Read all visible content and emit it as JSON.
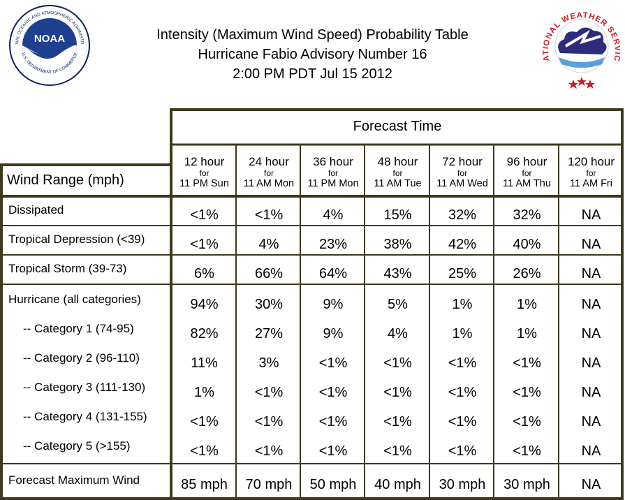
{
  "header": {
    "title_line1": "Intensity (Maximum Wind Speed) Probability Table",
    "title_line2": "Hurricane Fabio Advisory Number 16",
    "title_line3": "2:00 PM PDT Jul 15 2012",
    "noaa_logo_text": "NOAA",
    "noaa_ring_text": "NATIONAL OCEANIC AND ATMOSPHERIC ADMINISTRATION",
    "noaa_ring_bottom": "U.S. DEPARTMENT OF COMMERCE",
    "nws_ring_text": "NATIONAL WEATHER SERVICE"
  },
  "table": {
    "forecast_time_label": "Forecast Time",
    "wind_range_label": "Wind Range (mph)",
    "columns": [
      {
        "h1": "12 hour",
        "h2": "for",
        "h3": "11 PM Sun"
      },
      {
        "h1": "24 hour",
        "h2": "for",
        "h3": "11 AM Mon"
      },
      {
        "h1": "36 hour",
        "h2": "for",
        "h3": "11 PM Mon"
      },
      {
        "h1": "48 hour",
        "h2": "for",
        "h3": "11 AM Tue"
      },
      {
        "h1": "72 hour",
        "h2": "for",
        "h3": "11 AM Wed"
      },
      {
        "h1": "96 hour",
        "h2": "for",
        "h3": "11 AM Thu"
      },
      {
        "h1": "120 hour",
        "h2": "for",
        "h3": "11 AM Fri"
      }
    ],
    "rows": [
      {
        "label": "Dissipated",
        "values": [
          "<1%",
          "<1%",
          "4%",
          "15%",
          "32%",
          "32%",
          "NA"
        ]
      },
      {
        "label": "Tropical Depression (<39)",
        "values": [
          "<1%",
          "4%",
          "23%",
          "38%",
          "42%",
          "40%",
          "NA"
        ]
      },
      {
        "label": "Tropical Storm (39-73)",
        "values": [
          "6%",
          "66%",
          "64%",
          "43%",
          "25%",
          "26%",
          "NA"
        ]
      },
      {
        "label": "Hurricane (all categories)",
        "values": [
          "94%",
          "30%",
          "9%",
          "5%",
          "1%",
          "1%",
          "NA"
        ]
      },
      {
        "label": "-- Category 1 (74-95)",
        "values": [
          "82%",
          "27%",
          "9%",
          "4%",
          "1%",
          "1%",
          "NA"
        ]
      },
      {
        "label": "-- Category 2 (96-110)",
        "values": [
          "11%",
          "3%",
          "<1%",
          "<1%",
          "<1%",
          "<1%",
          "NA"
        ]
      },
      {
        "label": "-- Category 3 (111-130)",
        "values": [
          "1%",
          "<1%",
          "<1%",
          "<1%",
          "<1%",
          "<1%",
          "NA"
        ]
      },
      {
        "label": "-- Category 4 (131-155)",
        "values": [
          "<1%",
          "<1%",
          "<1%",
          "<1%",
          "<1%",
          "<1%",
          "NA"
        ]
      },
      {
        "label": "-- Category 5 (>155)",
        "values": [
          "<1%",
          "<1%",
          "<1%",
          "<1%",
          "<1%",
          "<1%",
          "NA"
        ]
      },
      {
        "label": "Forecast Maximum Wind",
        "values": [
          "85 mph",
          "70 mph",
          "50 mph",
          "40 mph",
          "30 mph",
          "30 mph",
          "NA"
        ]
      }
    ]
  },
  "colors": {
    "border": "#3d3a1c",
    "noaa_blue": "#1f3f8f",
    "noaa_navy": "#0d1f5e",
    "nws_red": "#c8202a",
    "nws_cloud": "#2b2d7a"
  }
}
